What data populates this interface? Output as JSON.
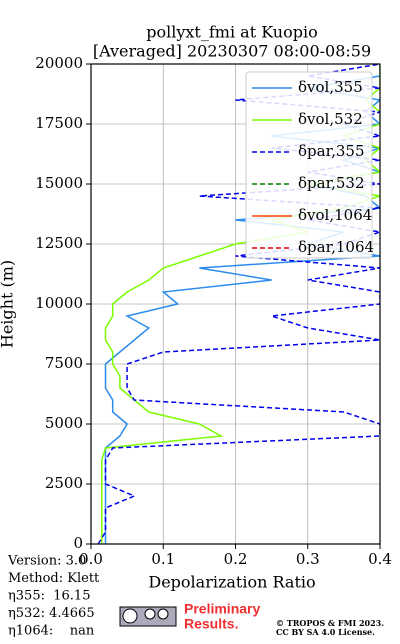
{
  "chart_data": {
    "type": "profile",
    "title": [
      "pollyxt_fmi at Kuopio",
      "[Averaged] 20230307 08:00-08:59"
    ],
    "xlabel": "Depolarization Ratio",
    "ylabel": "Height (m)",
    "xlim": [
      0,
      0.4
    ],
    "xticks": [
      {
        "value": 0,
        "label": "0.0"
      },
      0.1,
      0.2,
      0.3,
      0.4
    ],
    "ylim": [
      0,
      20000
    ],
    "yticks": [
      0,
      2500,
      5000,
      7500,
      10000,
      12500,
      15000,
      17500,
      20000
    ],
    "grid": true,
    "legend": "upper right",
    "heights": [
      0,
      500,
      1000,
      1500,
      2000,
      2500,
      3000,
      3500,
      4000,
      4500,
      5000,
      5500,
      6000,
      6500,
      7000,
      7500,
      8000,
      8500,
      9000,
      9500,
      10000,
      10500,
      11000,
      11500,
      12000,
      12500,
      13000,
      13500,
      14000,
      14500,
      15000,
      15500,
      16000,
      16500,
      17000,
      17500,
      18000,
      18500,
      19000,
      19500,
      20000
    ],
    "series": [
      {
        "name": "δvol,355",
        "color": "#2b8cee",
        "dash": false,
        "values": [
          0.02,
          0.02,
          0.02,
          0.02,
          0.02,
          0.02,
          0.02,
          0.02,
          0.02,
          0.04,
          0.05,
          0.03,
          0.03,
          0.02,
          0.02,
          0.02,
          0.04,
          0.06,
          0.08,
          0.05,
          0.12,
          0.1,
          0.25,
          0.15,
          0.4,
          0.3,
          0.35,
          0.2,
          0.4,
          0.38,
          0.3,
          0.4,
          0.35,
          0.4,
          0.25,
          0.4,
          0.38,
          0.4,
          0.3,
          0.4,
          0.4
        ]
      },
      {
        "name": "δvol,532",
        "color": "#7cfc00",
        "dash": false,
        "values": [
          0.015,
          0.015,
          0.015,
          0.015,
          0.015,
          0.015,
          0.015,
          0.015,
          0.02,
          0.18,
          0.15,
          0.08,
          0.06,
          0.04,
          0.04,
          0.03,
          0.03,
          0.02,
          0.02,
          0.03,
          0.03,
          0.05,
          0.08,
          0.1,
          0.15,
          0.2,
          0.3,
          0.25,
          0.35,
          0.4,
          0.3,
          0.4,
          0.38,
          0.4,
          0.35,
          0.4,
          0.4,
          0.38,
          0.4,
          0.4,
          0.4
        ]
      },
      {
        "name": "δpar,355",
        "color": "#0000ee",
        "dash": true,
        "values": [
          0.01,
          0.02,
          0.02,
          0.02,
          0.06,
          0.02,
          0.02,
          0.02,
          0.03,
          0.4,
          0.4,
          0.35,
          0.06,
          0.05,
          0.05,
          0.05,
          0.1,
          0.4,
          0.3,
          0.25,
          0.4,
          0.4,
          0.3,
          0.4,
          0.2,
          0.35,
          0.4,
          0.3,
          0.4,
          0.15,
          0.4,
          0.3,
          0.4,
          0.25,
          0.4,
          0.35,
          0.4,
          0.2,
          0.4,
          0.3,
          0.4
        ]
      },
      {
        "name": "δpar,532",
        "color": "#008000",
        "dash": true,
        "values": [
          null,
          null,
          null,
          null,
          null,
          null,
          null,
          null,
          null,
          null,
          null,
          null,
          null,
          null,
          null,
          null,
          null,
          null,
          null,
          null,
          null,
          null,
          null,
          null,
          null,
          null,
          null,
          null,
          null,
          null,
          null,
          null,
          null,
          null,
          null,
          null,
          null,
          null,
          null,
          null,
          null
        ]
      },
      {
        "name": "δvol,1064",
        "color": "#ff4500",
        "dash": false,
        "values": [
          null,
          null,
          null,
          null,
          null,
          null,
          null,
          null,
          null,
          null,
          null,
          null,
          null,
          null,
          null,
          null,
          null,
          null,
          null,
          null,
          null,
          null,
          null,
          null,
          null,
          null,
          null,
          null,
          null,
          null,
          null,
          null,
          null,
          null,
          null,
          null,
          null,
          null,
          null,
          null,
          null
        ]
      },
      {
        "name": "δpar,1064",
        "color": "#e00000",
        "dash": true,
        "values": [
          null,
          null,
          null,
          null,
          null,
          null,
          null,
          null,
          null,
          null,
          null,
          null,
          null,
          null,
          null,
          null,
          null,
          null,
          null,
          null,
          null,
          null,
          null,
          null,
          null,
          null,
          null,
          null,
          null,
          null,
          null,
          null,
          null,
          null,
          null,
          null,
          null,
          null,
          null,
          null,
          null
        ]
      }
    ],
    "info": [
      "Version: 3.0",
      "Method: Klett",
      "η355:  16.15",
      "η532: 4.4665",
      "η1064:    nan"
    ],
    "notice": [
      "Preliminary",
      "Results."
    ],
    "copyright": [
      "© TROPOS & FMI 2023.",
      "CC BY SA 4.0 License."
    ]
  }
}
